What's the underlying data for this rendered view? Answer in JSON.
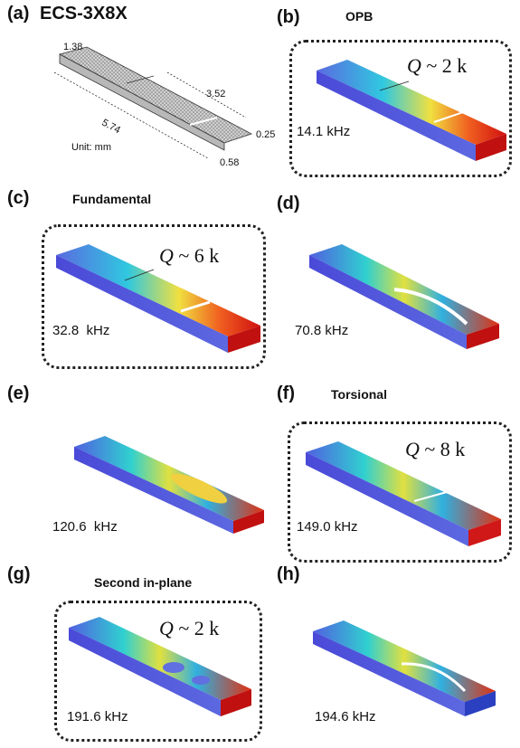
{
  "panels": {
    "a": {
      "letter": "(a)",
      "title": "ECS-3X8X",
      "unit": "Unit: mm",
      "dims": {
        "width": "1.38",
        "length": "5.74",
        "arm_length": "3.52",
        "thickness": "0.25",
        "arm_width": "0.58"
      }
    },
    "b": {
      "letter": "(b)",
      "title": "OPB",
      "q": "2 k",
      "freq": "14.1 kHz"
    },
    "c": {
      "letter": "(c)",
      "title": "Fundamental",
      "q": "6 k",
      "freq": "32.8  kHz"
    },
    "d": {
      "letter": "(d)",
      "freq": "70.8 kHz"
    },
    "e": {
      "letter": "(e)",
      "freq": "120.6  kHz"
    },
    "f": {
      "letter": "(f)",
      "title": "Torsional",
      "q": "8 k",
      "freq": "149.0 kHz"
    },
    "g": {
      "letter": "(g)",
      "title": "Second in-plane",
      "q": "2 k",
      "freq": "191.6 kHz"
    },
    "h": {
      "letter": "(h)",
      "freq": "194.6 kHz"
    }
  },
  "q_symbol": "Q",
  "q_sep": " ~ ",
  "colors": {
    "low": "#3a3fd0",
    "mid": "#20c8c0",
    "high": "#e02010",
    "outline": "#222222"
  }
}
